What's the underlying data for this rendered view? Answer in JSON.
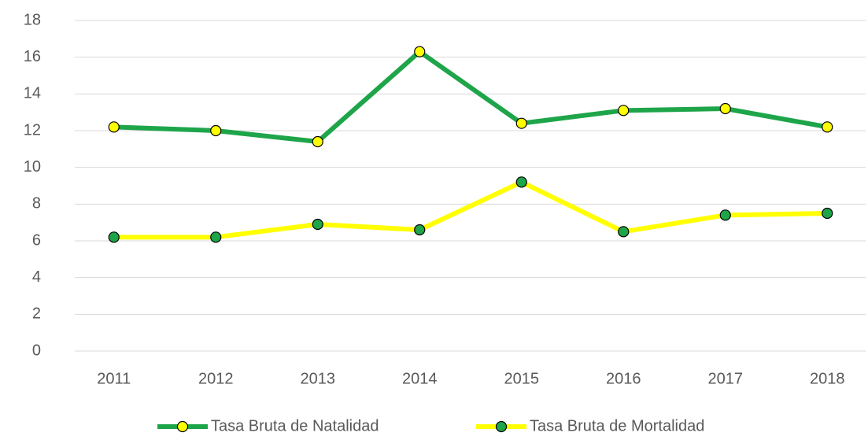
{
  "chart_data": {
    "type": "line",
    "categories": [
      "2011",
      "2012",
      "2013",
      "2014",
      "2015",
      "2016",
      "2017",
      "2018"
    ],
    "series": [
      {
        "name": "Tasa Bruta de Natalidad",
        "color": "#1ea54a",
        "marker_color": "#ffff00",
        "values": [
          12.2,
          12.0,
          11.4,
          16.3,
          12.4,
          13.1,
          13.2,
          12.2
        ]
      },
      {
        "name": "Tasa Bruta de Mortalidad",
        "color": "#ffff00",
        "marker_color": "#1ea54a",
        "values": [
          6.2,
          6.2,
          6.9,
          6.6,
          9.2,
          6.5,
          7.4,
          7.5
        ]
      }
    ],
    "ylim": [
      0,
      18
    ],
    "yticks": [
      0,
      2,
      4,
      6,
      8,
      10,
      12,
      14,
      16,
      18
    ],
    "grid": true,
    "legend": "bottom"
  }
}
